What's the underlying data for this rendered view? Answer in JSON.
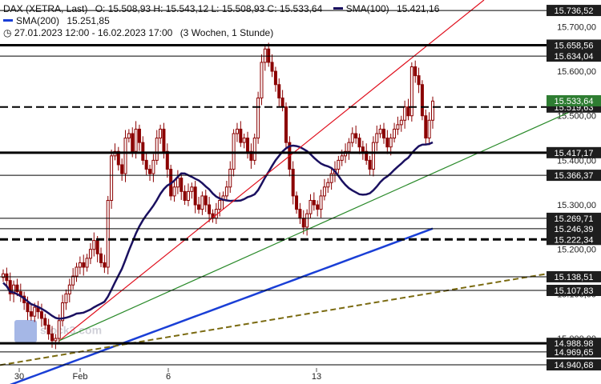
{
  "header": {
    "instrument": "DAX (XETRA, Last)",
    "ohlc": "O: 15.508,93  H: 15.543,12  L: 15.508,93  C: 15.533,64",
    "sma100_label": "SMA(100)",
    "sma100_value": "15.421,16",
    "sma200_label": "SMA(200)",
    "sma200_value": "15.251,85",
    "range": "27.01.2023 12:00 - 16.02.2023 17:00",
    "period": "(3 Wochen, 1 Stunde)"
  },
  "watermark": "stock3.com",
  "colors": {
    "candle": "#8b0000",
    "sma100": "#1a1060",
    "sma200": "#1a3fd6",
    "trend_red": "#e0101e",
    "trend_green": "#2a8a2a",
    "trend_olive": "#7a6a10",
    "level": "#000000",
    "label_bg": "#1e1e1e",
    "label_green": "#2e7d32"
  },
  "chart_data": {
    "type": "candlestick",
    "yrange": [
      14930,
      15760
    ],
    "ytick_labels": [
      "15.700,00",
      "15.600,00",
      "15.500,00",
      "15.400,00",
      "15.300,00",
      "15.200,00",
      "15.100,00",
      "15.000,00"
    ],
    "ytick_values": [
      15700,
      15600,
      15500,
      15400,
      15300,
      15200,
      15100,
      15000
    ],
    "xtick_labels": [
      "30",
      "Feb",
      "6",
      "13"
    ],
    "levels": [
      {
        "value": 15736.52,
        "label": "15.736,52",
        "style": "solid",
        "w": 1
      },
      {
        "value": 15658.56,
        "label": "15.658,56",
        "style": "solid",
        "w": 3
      },
      {
        "value": 15634.04,
        "label": "15.634,04",
        "style": "solid",
        "w": 1
      },
      {
        "value": 15519.63,
        "label": "15.519,63",
        "style": "dashed",
        "w": 2
      },
      {
        "value": 15417.17,
        "label": "15.417,17",
        "style": "solid",
        "w": 3
      },
      {
        "value": 15366.37,
        "label": "15.366,37",
        "style": "solid",
        "w": 1
      },
      {
        "value": 15269.71,
        "label": "15.269,71",
        "style": "solid",
        "w": 1
      },
      {
        "value": 15246.39,
        "label": "15.246,39",
        "style": "solid",
        "w": 1
      },
      {
        "value": 15222.34,
        "label": "15.222,34",
        "style": "dashed",
        "w": 3
      },
      {
        "value": 15138.51,
        "label": "15.138,51",
        "style": "solid",
        "w": 1
      },
      {
        "value": 15107.83,
        "label": "15.107,83",
        "style": "solid",
        "w": 1
      },
      {
        "value": 14988.98,
        "label": "14.988,98",
        "style": "solid",
        "w": 3
      },
      {
        "value": 14969.65,
        "label": "14.969,65",
        "style": "solid",
        "w": 1
      },
      {
        "value": 14940.68,
        "label": "14.940,68",
        "style": "solid",
        "w": 1
      }
    ],
    "last_price": {
      "value": 15533.64,
      "label": "15.533,64"
    },
    "closes": [
      15145,
      15130,
      15100,
      15120,
      15105,
      15095,
      15080,
      15060,
      15050,
      15070,
      15060,
      15045,
      15030,
      15010,
      14995,
      15000,
      15040,
      15080,
      15100,
      15120,
      15140,
      15160,
      15170,
      15160,
      15180,
      15200,
      15220,
      15190,
      15170,
      15160,
      15310,
      15410,
      15420,
      15390,
      15370,
      15450,
      15460,
      15420,
      15470,
      15440,
      15400,
      15380,
      15370,
      15400,
      15450,
      15470,
      15420,
      15380,
      15320,
      15340,
      15360,
      15330,
      15310,
      15330,
      15340,
      15300,
      15290,
      15320,
      15300,
      15280,
      15270,
      15290,
      15310,
      15320,
      15340,
      15380,
      15460,
      15470,
      15440,
      15450,
      15420,
      15400,
      15450,
      15540,
      15620,
      15650,
      15620,
      15600,
      15570,
      15540,
      15520,
      15440,
      15380,
      15320,
      15290,
      15270,
      15250,
      15280,
      15310,
      15300,
      15290,
      15320,
      15340,
      15350,
      15370,
      15380,
      15400,
      15410,
      15420,
      15440,
      15460,
      15450,
      15430,
      15420,
      15400,
      15380,
      15440,
      15460,
      15470,
      15450,
      15430,
      15450,
      15470,
      15480,
      15490,
      15520,
      15500,
      15610,
      15590,
      15570,
      15500,
      15450,
      15490,
      15533
    ]
  }
}
